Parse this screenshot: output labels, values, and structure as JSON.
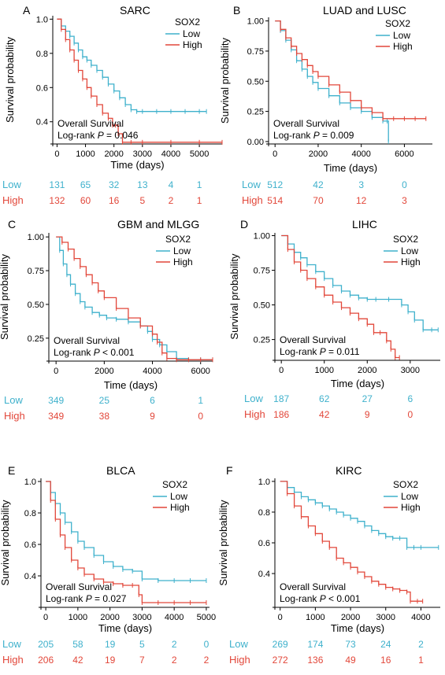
{
  "figure": {
    "ylabel": "Survival probability",
    "xlabel": "Time (days)",
    "legend_title": "SOX2",
    "overall_survival": "Overall Survival",
    "logrank_prefix": "Log-rank ",
    "p_symbol": "P",
    "groups": [
      "Low",
      "High"
    ],
    "colors": {
      "Low": "#3fb1cc",
      "High": "#e2473a"
    }
  },
  "chart_data": [
    {
      "type": "line",
      "panel": "A",
      "title": "SARC",
      "xlabel": "Time (days)",
      "ylabel": "Survival probability",
      "xlim": [
        -150,
        5800
      ],
      "ylim": [
        0.27,
        1.02
      ],
      "xticks": [
        0,
        1000,
        2000,
        3000,
        4000,
        5000
      ],
      "yticks": [
        0.4,
        0.6,
        0.8,
        1.0
      ],
      "ytick_labels": [
        "0.4",
        "0.6",
        "0.8",
        "1.0"
      ],
      "legend_position": "top-right",
      "pvalue": "= 0.046",
      "series": [
        {
          "name": "Low",
          "x": [
            0,
            150,
            300,
            450,
            600,
            750,
            900,
            1050,
            1200,
            1400,
            1600,
            1800,
            2000,
            2200,
            2400,
            2600,
            2800,
            3000,
            3500,
            4000,
            4500,
            5000,
            5250
          ],
          "y": [
            1.0,
            0.96,
            0.93,
            0.9,
            0.86,
            0.82,
            0.78,
            0.76,
            0.73,
            0.7,
            0.66,
            0.62,
            0.58,
            0.54,
            0.5,
            0.47,
            0.46,
            0.46,
            0.46,
            0.46,
            0.46,
            0.46,
            0.46
          ]
        },
        {
          "name": "High",
          "x": [
            0,
            150,
            300,
            450,
            600,
            750,
            900,
            1050,
            1200,
            1400,
            1600,
            1800,
            1950,
            2050,
            2150,
            2300,
            2600,
            3000,
            4000,
            5000,
            5800
          ],
          "y": [
            1.0,
            0.94,
            0.88,
            0.82,
            0.76,
            0.7,
            0.65,
            0.6,
            0.55,
            0.5,
            0.45,
            0.42,
            0.38,
            0.38,
            0.33,
            0.28,
            0.28,
            0.28,
            0.28,
            0.28,
            0.28
          ]
        }
      ],
      "risk_table": {
        "Low": [
          131,
          65,
          32,
          13,
          4,
          1
        ],
        "High": [
          132,
          60,
          16,
          5,
          2,
          1
        ]
      }
    },
    {
      "type": "line",
      "panel": "B",
      "title": "LUAD and LUSC",
      "xlabel": "Time (days)",
      "ylabel": "Survival probability",
      "xlim": [
        -300,
        7300
      ],
      "ylim": [
        -0.02,
        1.03
      ],
      "xticks": [
        0,
        2000,
        4000,
        6000
      ],
      "yticks": [
        0.0,
        0.25,
        0.5,
        0.75,
        1.0
      ],
      "ytick_labels": [
        "0.00",
        "0.25",
        "0.50",
        "0.75",
        "1.00"
      ],
      "legend_position": "top-right",
      "pvalue": "= 0.009",
      "series": [
        {
          "name": "Low",
          "x": [
            0,
            250,
            500,
            750,
            1000,
            1250,
            1500,
            1750,
            2000,
            2500,
            3000,
            3500,
            4000,
            4500,
            5000,
            5200,
            5260
          ],
          "y": [
            1.0,
            0.92,
            0.84,
            0.76,
            0.67,
            0.6,
            0.54,
            0.49,
            0.44,
            0.38,
            0.32,
            0.28,
            0.25,
            0.2,
            0.17,
            0.17,
            0.0
          ]
        },
        {
          "name": "High",
          "x": [
            0,
            250,
            500,
            750,
            1000,
            1250,
            1500,
            1750,
            2000,
            2500,
            3000,
            3500,
            4000,
            4500,
            5000,
            5500,
            6000,
            6500,
            7000
          ],
          "y": [
            1.0,
            0.93,
            0.86,
            0.79,
            0.73,
            0.68,
            0.63,
            0.58,
            0.54,
            0.47,
            0.41,
            0.34,
            0.28,
            0.24,
            0.19,
            0.19,
            0.19,
            0.19,
            0.19
          ]
        }
      ],
      "risk_table": {
        "Low": [
          512,
          42,
          3,
          0
        ],
        "High": [
          514,
          70,
          12,
          3
        ]
      }
    },
    {
      "type": "line",
      "panel": "C",
      "title": "GBM and MLGG",
      "xlabel": "Time (days)",
      "ylabel": "Survival probability",
      "xlim": [
        -300,
        6500
      ],
      "ylim": [
        0.08,
        1.03
      ],
      "xticks": [
        0,
        2000,
        4000,
        6000
      ],
      "yticks": [
        0.25,
        0.5,
        0.75,
        1.0
      ],
      "ytick_labels": [
        "0.25",
        "0.50",
        "0.75",
        "1.00"
      ],
      "legend_position": "top-right",
      "pvalue": "< 0.001",
      "series": [
        {
          "name": "Low",
          "x": [
            0,
            150,
            300,
            450,
            600,
            800,
            1000,
            1200,
            1500,
            1800,
            2100,
            2500,
            3000,
            3500,
            3800,
            4000,
            4300,
            4600,
            5000,
            5500,
            6000,
            6500
          ],
          "y": [
            1.0,
            0.9,
            0.8,
            0.72,
            0.65,
            0.58,
            0.52,
            0.48,
            0.44,
            0.42,
            0.4,
            0.39,
            0.37,
            0.34,
            0.3,
            0.24,
            0.2,
            0.15,
            0.1,
            0.09,
            0.09,
            0.09
          ]
        },
        {
          "name": "High",
          "x": [
            0,
            250,
            500,
            750,
            1000,
            1250,
            1500,
            1750,
            2000,
            2500,
            3000,
            3500,
            4000,
            4200,
            4400,
            4600,
            5000,
            5500,
            6000,
            6500
          ],
          "y": [
            1.0,
            0.96,
            0.91,
            0.84,
            0.78,
            0.72,
            0.66,
            0.6,
            0.55,
            0.47,
            0.4,
            0.34,
            0.28,
            0.22,
            0.14,
            0.1,
            0.09,
            0.09,
            0.09,
            0.09
          ]
        }
      ],
      "risk_table": {
        "Low": [
          349,
          25,
          6,
          1
        ],
        "High": [
          349,
          38,
          9,
          0
        ]
      }
    },
    {
      "type": "line",
      "panel": "D",
      "title": "LIHC",
      "xlabel": "Time (days)",
      "ylabel": "Survival probability",
      "xlim": [
        -150,
        3700
      ],
      "ylim": [
        0.1,
        1.02
      ],
      "xticks": [
        0,
        1000,
        2000,
        3000
      ],
      "yticks": [
        0.25,
        0.5,
        0.75,
        1.0
      ],
      "ytick_labels": [
        "0.25",
        "0.50",
        "0.75",
        "1.00"
      ],
      "legend_position": "top-right",
      "pvalue": "= 0.011",
      "series": [
        {
          "name": "Low",
          "x": [
            0,
            150,
            300,
            450,
            600,
            800,
            1000,
            1200,
            1400,
            1600,
            1800,
            2000,
            2200,
            2500,
            2800,
            2950,
            3100,
            3300,
            3500,
            3650
          ],
          "y": [
            1.0,
            0.94,
            0.88,
            0.84,
            0.79,
            0.74,
            0.69,
            0.64,
            0.6,
            0.57,
            0.55,
            0.54,
            0.54,
            0.54,
            0.5,
            0.45,
            0.39,
            0.32,
            0.32,
            0.32
          ]
        },
        {
          "name": "High",
          "x": [
            0,
            150,
            300,
            450,
            600,
            800,
            1000,
            1200,
            1400,
            1600,
            1800,
            2000,
            2150,
            2300,
            2450,
            2550,
            2650,
            2750
          ],
          "y": [
            1.0,
            0.9,
            0.81,
            0.75,
            0.69,
            0.63,
            0.57,
            0.52,
            0.48,
            0.44,
            0.4,
            0.36,
            0.3,
            0.3,
            0.24,
            0.18,
            0.12,
            0.12
          ]
        }
      ],
      "risk_table": {
        "Low": [
          187,
          62,
          27,
          6
        ],
        "High": [
          186,
          42,
          9,
          0
        ]
      }
    },
    {
      "type": "line",
      "panel": "E",
      "title": "BLCA",
      "xlabel": "Time (days)",
      "ylabel": "Survival probability",
      "xlim": [
        -150,
        5100
      ],
      "ylim": [
        0.2,
        1.02
      ],
      "xticks": [
        0,
        1000,
        2000,
        3000,
        4000,
        5000
      ],
      "yticks": [
        0.4,
        0.6,
        0.8,
        1.0
      ],
      "ytick_labels": [
        "0.4",
        "0.6",
        "0.8",
        "1.0"
      ],
      "legend_position": "top-right",
      "pvalue": "= 0.027",
      "series": [
        {
          "name": "Low",
          "x": [
            0,
            150,
            300,
            450,
            600,
            800,
            1000,
            1200,
            1500,
            1800,
            2100,
            2400,
            2700,
            3000,
            3500,
            4000,
            4500,
            5000
          ],
          "y": [
            1.0,
            0.93,
            0.86,
            0.8,
            0.74,
            0.68,
            0.62,
            0.58,
            0.53,
            0.49,
            0.46,
            0.44,
            0.43,
            0.38,
            0.37,
            0.37,
            0.37,
            0.37
          ]
        },
        {
          "name": "High",
          "x": [
            0,
            150,
            300,
            450,
            600,
            800,
            1000,
            1200,
            1500,
            1800,
            2100,
            2400,
            2700,
            2900,
            3000,
            3500,
            4000,
            4500,
            5000
          ],
          "y": [
            1.0,
            0.88,
            0.76,
            0.66,
            0.58,
            0.5,
            0.45,
            0.41,
            0.38,
            0.36,
            0.35,
            0.34,
            0.34,
            0.28,
            0.23,
            0.23,
            0.23,
            0.23,
            0.23
          ]
        }
      ],
      "risk_table": {
        "Low": [
          205,
          58,
          19,
          5,
          2,
          0
        ],
        "High": [
          206,
          42,
          19,
          7,
          2,
          2
        ]
      }
    },
    {
      "type": "line",
      "panel": "F",
      "title": "KIRC",
      "xlabel": "Time (days)",
      "ylabel": "Survival probability",
      "xlim": [
        -150,
        4550
      ],
      "ylim": [
        0.18,
        1.02
      ],
      "xticks": [
        0,
        1000,
        2000,
        3000,
        4000
      ],
      "yticks": [
        0.4,
        0.6,
        0.8,
        1.0
      ],
      "ytick_labels": [
        "0.4",
        "0.6",
        "0.8",
        "1.0"
      ],
      "legend_position": "top-right",
      "pvalue": "< 0.001",
      "series": [
        {
          "name": "Low",
          "x": [
            0,
            200,
            400,
            600,
            800,
            1000,
            1200,
            1400,
            1600,
            1800,
            2000,
            2200,
            2400,
            2600,
            2800,
            3000,
            3200,
            3400,
            3600,
            3800,
            4000,
            4500
          ],
          "y": [
            1.0,
            0.96,
            0.93,
            0.9,
            0.88,
            0.86,
            0.84,
            0.82,
            0.8,
            0.78,
            0.76,
            0.74,
            0.71,
            0.68,
            0.66,
            0.64,
            0.63,
            0.63,
            0.57,
            0.57,
            0.57,
            0.57
          ]
        },
        {
          "name": "High",
          "x": [
            0,
            200,
            400,
            600,
            800,
            1000,
            1200,
            1400,
            1600,
            1800,
            2000,
            2200,
            2400,
            2600,
            2800,
            3000,
            3200,
            3400,
            3600,
            3700,
            3900,
            4050
          ],
          "y": [
            1.0,
            0.92,
            0.84,
            0.77,
            0.71,
            0.66,
            0.61,
            0.57,
            0.5,
            0.47,
            0.44,
            0.41,
            0.38,
            0.35,
            0.33,
            0.31,
            0.3,
            0.29,
            0.28,
            0.22,
            0.22,
            0.22
          ]
        }
      ],
      "risk_table": {
        "Low": [
          269,
          174,
          73,
          24,
          2
        ],
        "High": [
          272,
          136,
          49,
          16,
          1
        ]
      }
    }
  ]
}
